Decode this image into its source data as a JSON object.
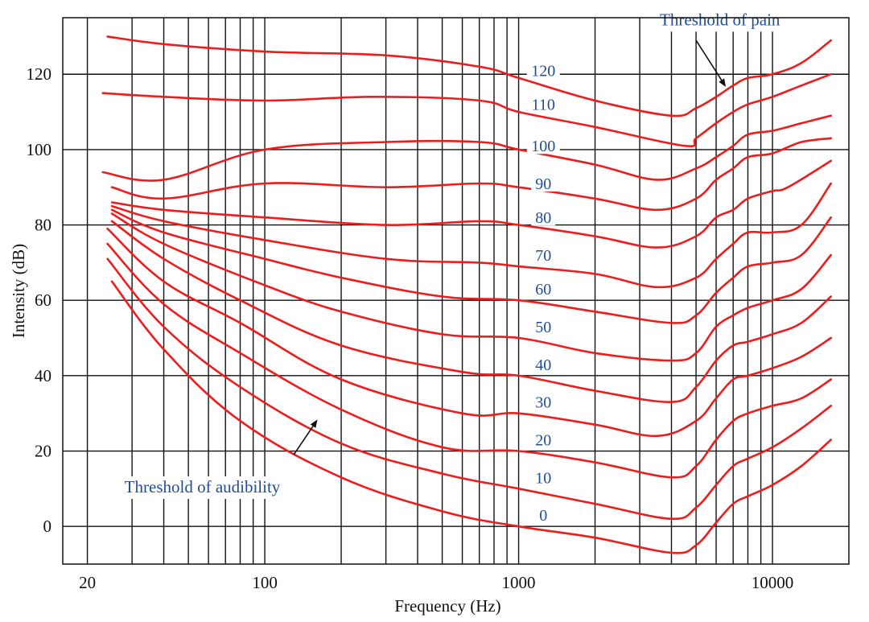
{
  "chart_data": {
    "type": "line",
    "xlabel": "Frequency (Hz)",
    "ylabel": "Intensity (dB)",
    "x_scale": "log",
    "xlim": [
      16,
      20000
    ],
    "ylim": [
      -10,
      135
    ],
    "x_ticks": [
      {
        "value": 20,
        "label": "20"
      },
      {
        "value": 100,
        "label": "100"
      },
      {
        "value": 1000,
        "label": "1000"
      },
      {
        "value": 10000,
        "label": "10000"
      }
    ],
    "y_ticks": [
      {
        "value": 0,
        "label": "0"
      },
      {
        "value": 20,
        "label": "20"
      },
      {
        "value": 40,
        "label": "40"
      },
      {
        "value": 60,
        "label": "60"
      },
      {
        "value": 80,
        "label": "80"
      },
      {
        "value": 100,
        "label": "100"
      },
      {
        "value": 120,
        "label": "120"
      }
    ],
    "grid": true,
    "x_gridlines": [
      20,
      30,
      40,
      50,
      60,
      70,
      80,
      90,
      100,
      200,
      300,
      400,
      500,
      600,
      700,
      800,
      900,
      1000,
      2000,
      3000,
      4000,
      5000,
      6000,
      7000,
      8000,
      9000,
      10000
    ],
    "line_color": "#ee1c1c",
    "label_color": "#1f4e96",
    "series": [
      {
        "name": "0",
        "label_at": [
          1050,
          3
        ],
        "points": [
          [
            25,
            65
          ],
          [
            40,
            47
          ],
          [
            80,
            28
          ],
          [
            200,
            13
          ],
          [
            500,
            4
          ],
          [
            1000,
            0
          ],
          [
            2000,
            -3
          ],
          [
            4000,
            -7
          ],
          [
            5000,
            -5
          ],
          [
            6000,
            1
          ],
          [
            7000,
            6
          ],
          [
            8000,
            8
          ],
          [
            10000,
            11
          ],
          [
            13000,
            16
          ],
          [
            17000,
            23
          ]
        ]
      },
      {
        "name": "10",
        "label_at": [
          1050,
          13
        ],
        "points": [
          [
            24,
            71
          ],
          [
            40,
            53
          ],
          [
            80,
            37
          ],
          [
            200,
            22
          ],
          [
            500,
            14
          ],
          [
            1000,
            10
          ],
          [
            2000,
            6
          ],
          [
            4000,
            2
          ],
          [
            5000,
            5
          ],
          [
            6000,
            11
          ],
          [
            7000,
            16
          ],
          [
            8000,
            18
          ],
          [
            10000,
            21
          ],
          [
            13000,
            26
          ],
          [
            17000,
            32
          ]
        ]
      },
      {
        "name": "20",
        "label_at": [
          1050,
          23
        ],
        "points": [
          [
            24,
            75
          ],
          [
            40,
            59
          ],
          [
            80,
            46
          ],
          [
            200,
            31
          ],
          [
            500,
            21
          ],
          [
            1000,
            20
          ],
          [
            2000,
            17
          ],
          [
            4000,
            13
          ],
          [
            5000,
            16
          ],
          [
            6000,
            23
          ],
          [
            7000,
            28
          ],
          [
            8000,
            30
          ],
          [
            10000,
            32
          ],
          [
            13000,
            34
          ],
          [
            17000,
            39
          ]
        ]
      },
      {
        "name": "30",
        "label_at": [
          1050,
          33
        ],
        "points": [
          [
            24,
            79
          ],
          [
            40,
            65
          ],
          [
            80,
            54
          ],
          [
            200,
            39
          ],
          [
            600,
            30
          ],
          [
            1000,
            30
          ],
          [
            2000,
            27
          ],
          [
            3500,
            24
          ],
          [
            5000,
            28
          ],
          [
            6000,
            34
          ],
          [
            7000,
            39
          ],
          [
            8000,
            40
          ],
          [
            10000,
            42
          ],
          [
            13000,
            45
          ],
          [
            17000,
            50
          ]
        ]
      },
      {
        "name": "40",
        "label_at": [
          1050,
          43
        ],
        "points": [
          [
            25,
            81
          ],
          [
            40,
            71
          ],
          [
            80,
            60
          ],
          [
            200,
            48
          ],
          [
            600,
            41
          ],
          [
            1000,
            40
          ],
          [
            2000,
            36
          ],
          [
            4000,
            33
          ],
          [
            5000,
            37
          ],
          [
            6000,
            44
          ],
          [
            7000,
            48
          ],
          [
            8000,
            49
          ],
          [
            10000,
            51
          ],
          [
            13000,
            54
          ],
          [
            17000,
            61
          ]
        ]
      },
      {
        "name": "50",
        "label_at": [
          1050,
          53
        ],
        "points": [
          [
            25,
            83
          ],
          [
            40,
            75
          ],
          [
            100,
            64
          ],
          [
            200,
            57
          ],
          [
            500,
            51
          ],
          [
            1000,
            50
          ],
          [
            2000,
            46
          ],
          [
            4000,
            44
          ],
          [
            5000,
            46
          ],
          [
            6000,
            53
          ],
          [
            7000,
            56
          ],
          [
            8000,
            58
          ],
          [
            10000,
            60
          ],
          [
            13000,
            63
          ],
          [
            17000,
            72
          ]
        ]
      },
      {
        "name": "60",
        "label_at": [
          1050,
          63
        ],
        "points": [
          [
            25,
            84
          ],
          [
            40,
            78
          ],
          [
            100,
            71
          ],
          [
            200,
            66
          ],
          [
            500,
            61
          ],
          [
            1000,
            60
          ],
          [
            2000,
            57
          ],
          [
            4000,
            54
          ],
          [
            5000,
            56
          ],
          [
            6000,
            62
          ],
          [
            7000,
            66
          ],
          [
            8000,
            69
          ],
          [
            10000,
            70
          ],
          [
            13000,
            72
          ],
          [
            17000,
            82
          ]
        ]
      },
      {
        "name": "70",
        "label_at": [
          1050,
          72
        ],
        "points": [
          [
            25,
            85
          ],
          [
            40,
            81
          ],
          [
            100,
            76
          ],
          [
            300,
            71
          ],
          [
            700,
            70
          ],
          [
            1000,
            69
          ],
          [
            2000,
            67
          ],
          [
            3500,
            63.5
          ],
          [
            5000,
            66
          ],
          [
            6000,
            71
          ],
          [
            7000,
            75
          ],
          [
            8000,
            78
          ],
          [
            10000,
            78
          ],
          [
            13000,
            80
          ],
          [
            17000,
            91
          ]
        ]
      },
      {
        "name": "80",
        "label_at": [
          1050,
          82
        ],
        "points": [
          [
            25,
            86
          ],
          [
            40,
            84
          ],
          [
            100,
            82
          ],
          [
            300,
            80
          ],
          [
            700,
            81
          ],
          [
            1000,
            80
          ],
          [
            2000,
            77
          ],
          [
            3500,
            74
          ],
          [
            5000,
            77
          ],
          [
            6000,
            82
          ],
          [
            7000,
            84
          ],
          [
            8000,
            87
          ],
          [
            10000,
            89
          ],
          [
            11500,
            90
          ],
          [
            17000,
            97
          ]
        ]
      },
      {
        "name": "90",
        "label_at": [
          1050,
          91
        ],
        "points": [
          [
            25,
            90
          ],
          [
            40,
            87
          ],
          [
            100,
            91
          ],
          [
            300,
            90
          ],
          [
            700,
            91
          ],
          [
            1000,
            90
          ],
          [
            2000,
            87
          ],
          [
            3500,
            84
          ],
          [
            5000,
            87
          ],
          [
            6000,
            92
          ],
          [
            7000,
            95
          ],
          [
            8000,
            98
          ],
          [
            10000,
            99
          ],
          [
            13000,
            102
          ],
          [
            17000,
            103
          ]
        ]
      },
      {
        "name": "100",
        "label_at": [
          1050,
          101
        ],
        "points": [
          [
            23,
            94
          ],
          [
            40,
            92
          ],
          [
            100,
            100
          ],
          [
            300,
            102
          ],
          [
            700,
            102
          ],
          [
            1000,
            100
          ],
          [
            2000,
            96
          ],
          [
            3500,
            92
          ],
          [
            5000,
            95
          ],
          [
            6000,
            98
          ],
          [
            7000,
            101
          ],
          [
            8000,
            104
          ],
          [
            10000,
            105
          ],
          [
            13000,
            107
          ],
          [
            17000,
            109
          ]
        ]
      },
      {
        "name": "110",
        "label_at": [
          1050,
          112
        ],
        "points": [
          [
            23,
            115
          ],
          [
            40,
            114
          ],
          [
            100,
            113
          ],
          [
            270,
            114
          ],
          [
            700,
            113
          ],
          [
            1000,
            110
          ],
          [
            2000,
            106
          ],
          [
            4500,
            101
          ],
          [
            5000,
            103
          ],
          [
            6000,
            107
          ],
          [
            7000,
            110
          ],
          [
            8000,
            112
          ],
          [
            10000,
            114
          ],
          [
            13000,
            117
          ],
          [
            17000,
            120
          ]
        ]
      },
      {
        "name": "120",
        "label_at": [
          1050,
          121
        ],
        "points": [
          [
            24,
            130
          ],
          [
            40,
            128
          ],
          [
            100,
            126
          ],
          [
            300,
            125
          ],
          [
            700,
            122
          ],
          [
            1000,
            119
          ],
          [
            2000,
            113
          ],
          [
            4000,
            109
          ],
          [
            5000,
            111
          ],
          [
            6000,
            114
          ],
          [
            7000,
            117
          ],
          [
            8000,
            119
          ],
          [
            10000,
            120
          ],
          [
            13000,
            123
          ],
          [
            17000,
            129
          ]
        ]
      }
    ],
    "annotations": [
      {
        "text": "Threshold of pain",
        "text_at": [
          3600,
          133
        ],
        "arrow_from": [
          5000,
          129
        ],
        "arrow_to": [
          6500,
          117
        ]
      },
      {
        "text": "Threshold of audibility",
        "text_at": [
          28,
          9
        ],
        "arrow_from": [
          130,
          19
        ],
        "arrow_to": [
          160,
          28
        ]
      }
    ]
  }
}
